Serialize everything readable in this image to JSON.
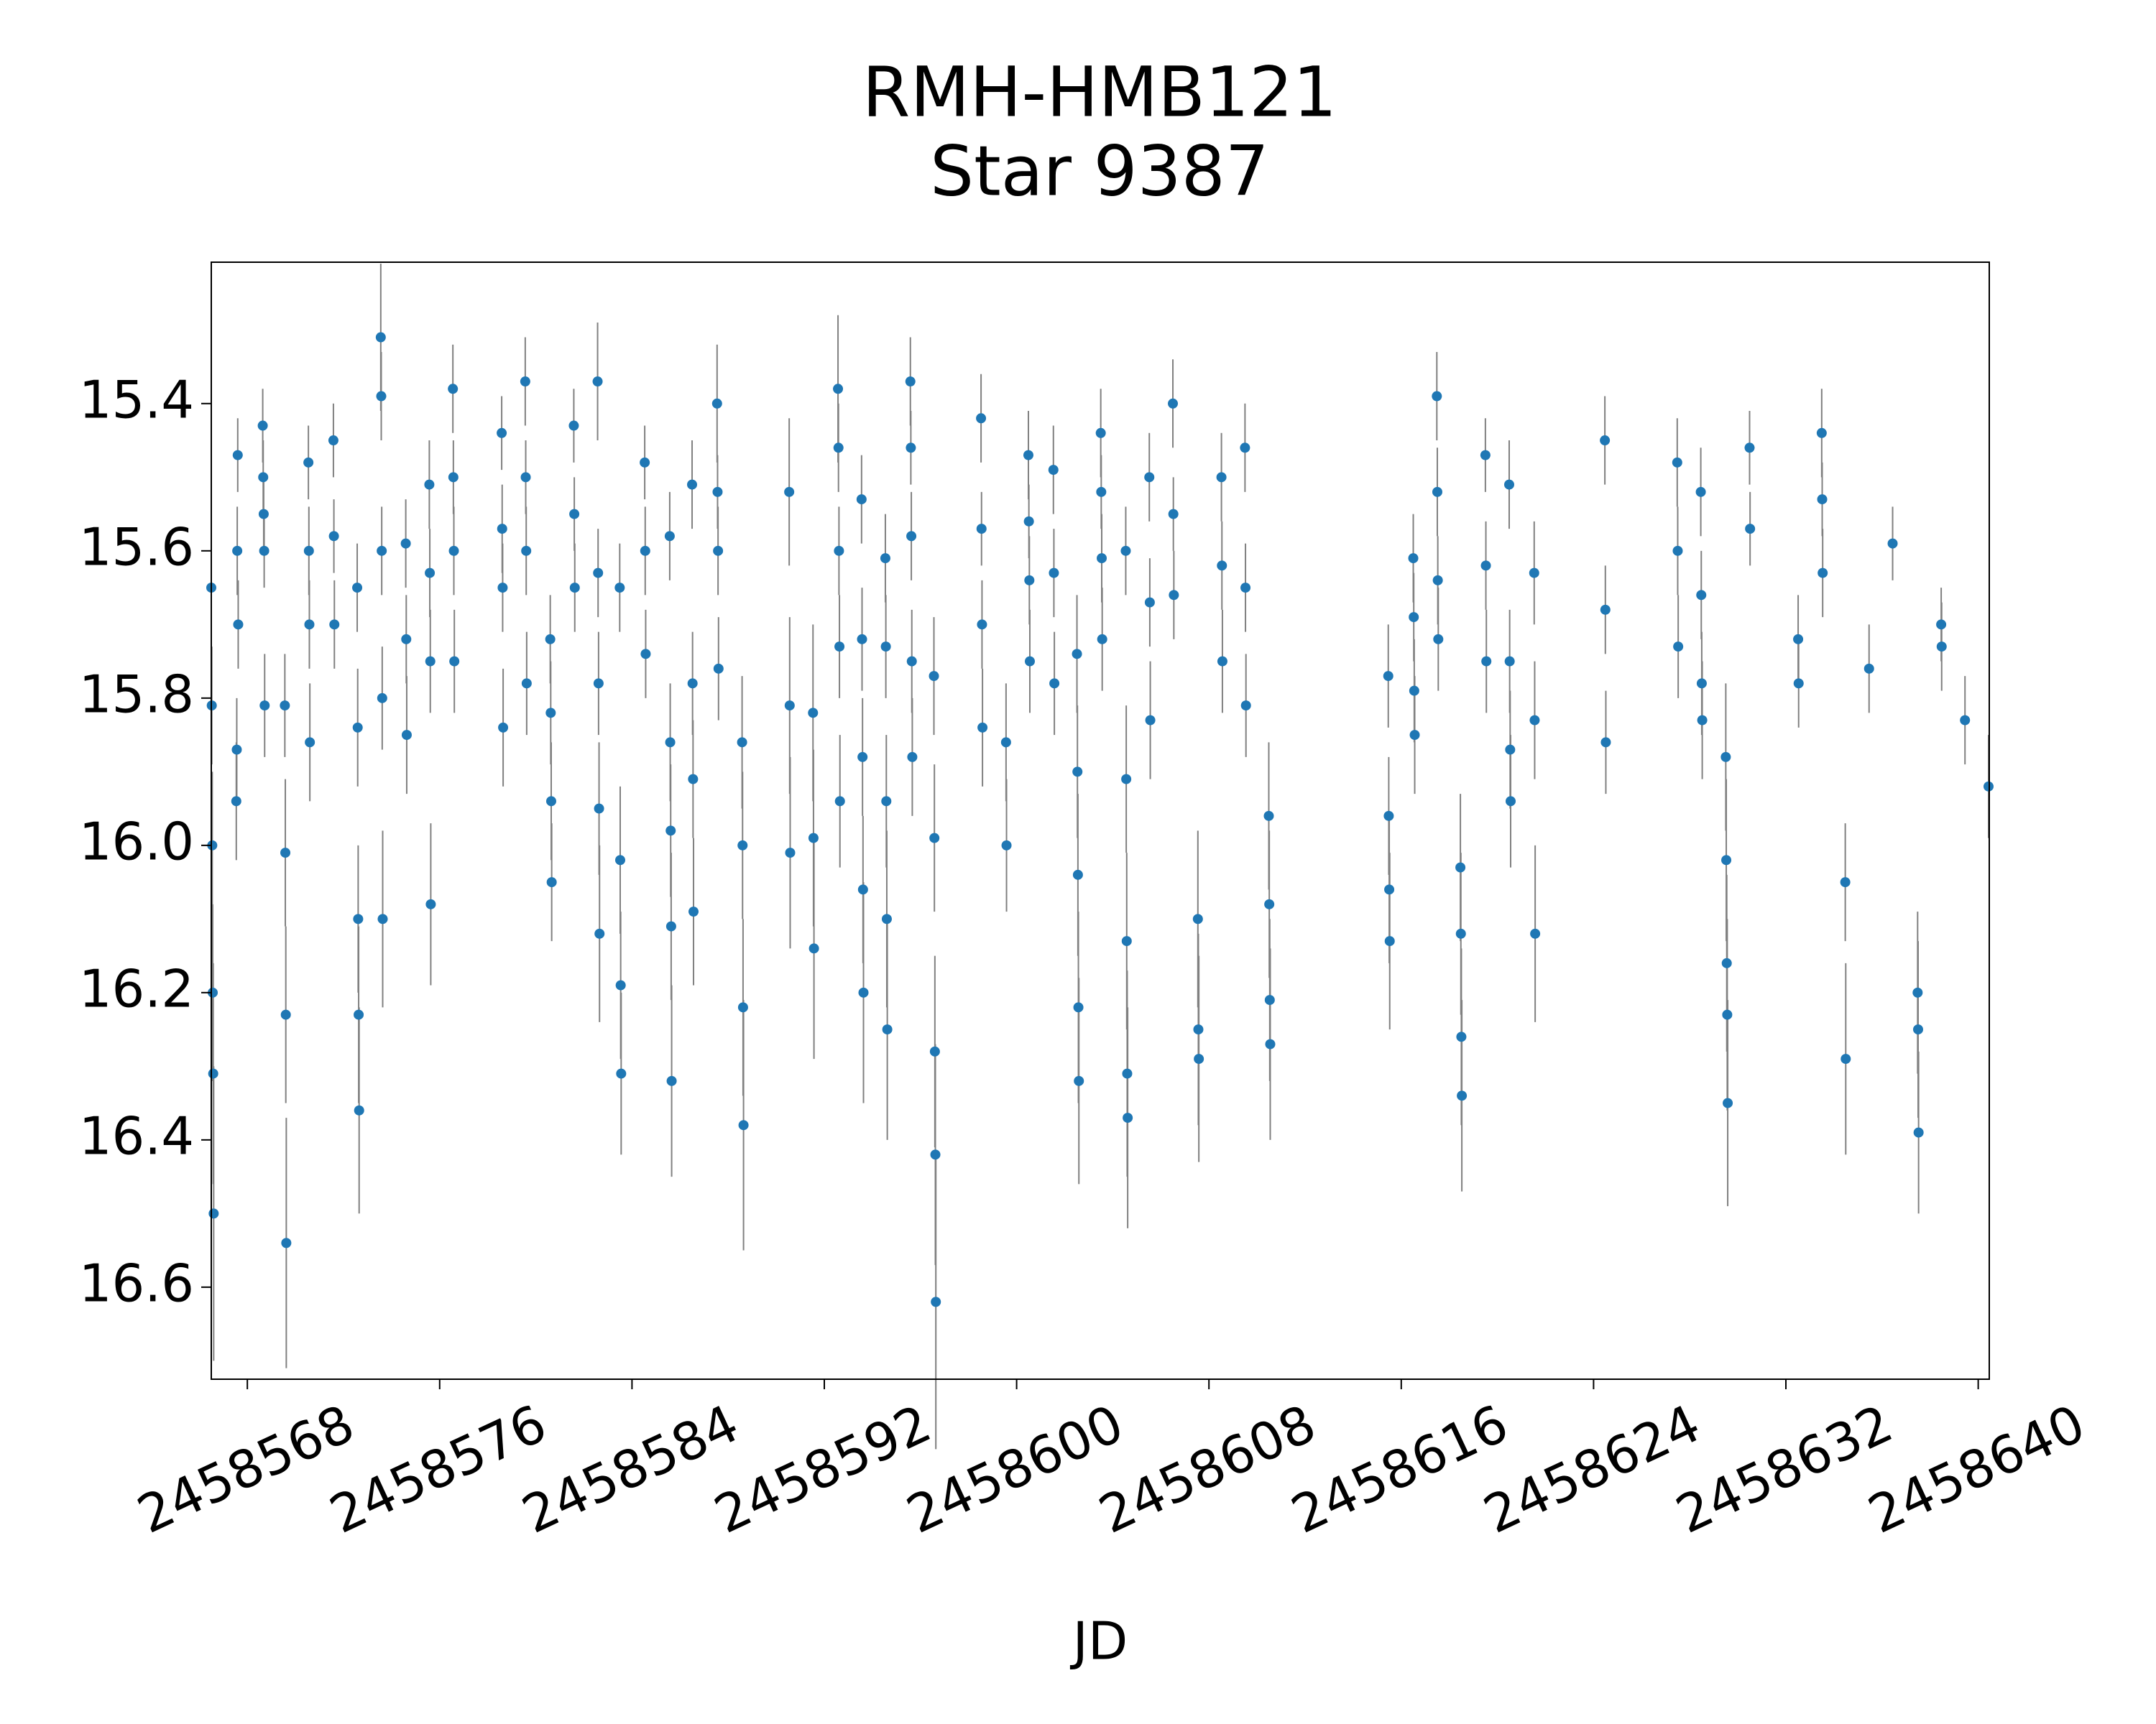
{
  "chart_data": {
    "type": "errorbar",
    "title": "RMH-HMB121",
    "subtitle": "Star 9387",
    "x_label": "JD",
    "xlim": [
      2458566.5,
      2458640.46
    ],
    "ylim": [
      16.725,
      15.208
    ],
    "xticks": [
      2458568,
      2458576,
      2458584,
      2458592,
      2458600,
      2458608,
      2458616,
      2458624,
      2458632,
      2458640
    ],
    "yticks": [
      15.4,
      15.6,
      15.8,
      {
        "value": 16,
        "label": "16.0"
      },
      16.2,
      16.4,
      16.6
    ],
    "color": "#1f77b4",
    "error_color": "#808080",
    "x": [
      2458566.5,
      2458566.52,
      2458566.54,
      2458566.56,
      2458566.58,
      2458566.6,
      2458567.54,
      2458567.56,
      2458567.58,
      2458567.6,
      2458567.62,
      2458568.64,
      2458568.66,
      2458568.68,
      2458568.7,
      2458568.72,
      2458569.56,
      2458569.58,
      2458569.6,
      2458569.62,
      2458570.54,
      2458570.56,
      2458570.58,
      2458570.6,
      2458571.58,
      2458571.6,
      2458571.62,
      2458572.57,
      2458572.59,
      2458572.61,
      2458572.63,
      2458572.65,
      2458573.55,
      2458573.57,
      2458573.59,
      2458573.61,
      2458573.63,
      2458574.59,
      2458574.61,
      2458574.63,
      2458575.57,
      2458575.59,
      2458575.61,
      2458575.63,
      2458576.55,
      2458576.57,
      2458576.59,
      2458576.61,
      2458578.58,
      2458578.6,
      2458578.62,
      2458578.64,
      2458579.56,
      2458579.58,
      2458579.6,
      2458579.62,
      2458580.6,
      2458580.62,
      2458580.64,
      2458580.66,
      2458581.58,
      2458581.6,
      2458581.62,
      2458582.57,
      2458582.59,
      2458582.61,
      2458582.63,
      2458582.65,
      2458583.49,
      2458583.51,
      2458583.53,
      2458583.55,
      2458584.53,
      2458584.55,
      2458584.57,
      2458585.57,
      2458585.59,
      2458585.61,
      2458585.63,
      2458585.65,
      2458586.5,
      2458586.52,
      2458586.54,
      2458586.56,
      2458587.54,
      2458587.56,
      2458587.58,
      2458587.6,
      2458588.58,
      2458588.6,
      2458588.62,
      2458588.64,
      2458590.54,
      2458590.56,
      2458590.58,
      2458591.53,
      2458591.55,
      2458591.57,
      2458592.57,
      2458592.59,
      2458592.61,
      2458592.63,
      2458592.65,
      2458593.55,
      2458593.57,
      2458593.59,
      2458593.61,
      2458593.63,
      2458594.54,
      2458594.56,
      2458594.58,
      2458594.6,
      2458594.62,
      2458595.58,
      2458595.6,
      2458595.62,
      2458595.64,
      2458595.66,
      2458596.56,
      2458596.58,
      2458596.6,
      2458596.62,
      2458596.64,
      2458598.52,
      2458598.54,
      2458598.56,
      2458598.58,
      2458599.56,
      2458599.58,
      2458600.49,
      2458600.51,
      2458600.53,
      2458600.55,
      2458601.53,
      2458601.55,
      2458601.57,
      2458602.51,
      2458602.53,
      2458602.55,
      2458602.57,
      2458602.59,
      2458603.5,
      2458603.52,
      2458603.54,
      2458603.56,
      2458604.54,
      2458604.56,
      2458604.58,
      2458604.6,
      2458604.62,
      2458605.52,
      2458605.54,
      2458605.56,
      2458606.5,
      2458606.52,
      2458606.54,
      2458607.54,
      2458607.56,
      2458607.58,
      2458608.52,
      2458608.54,
      2458608.56,
      2458609.5,
      2458609.52,
      2458609.54,
      2458610.49,
      2458610.51,
      2458610.53,
      2458610.55,
      2458615.46,
      2458615.48,
      2458615.5,
      2458615.52,
      2458616.5,
      2458616.52,
      2458616.54,
      2458616.56,
      2458617.48,
      2458617.5,
      2458617.52,
      2458617.54,
      2458618.46,
      2458618.48,
      2458618.5,
      2458618.52,
      2458619.5,
      2458619.52,
      2458619.54,
      2458620.49,
      2458620.51,
      2458620.53,
      2458620.55,
      2458621.53,
      2458621.55,
      2458621.57,
      2458624.47,
      2458624.49,
      2458624.51,
      2458627.48,
      2458627.5,
      2458627.52,
      2458628.46,
      2458628.48,
      2458628.5,
      2458628.52,
      2458629.5,
      2458629.52,
      2458629.54,
      2458629.56,
      2458629.58,
      2458630.49,
      2458630.51,
      2458632.51,
      2458632.53,
      2458633.49,
      2458633.51,
      2458633.53,
      2458634.47,
      2458634.49,
      2458635.46,
      2458636.44,
      2458637.48,
      2458637.5,
      2458637.52,
      2458638.46,
      2458638.48,
      2458639.45,
      2458640.43
    ],
    "values": [
      15.65,
      15.81,
      16.0,
      16.2,
      16.31,
      16.5,
      15.94,
      15.87,
      15.6,
      15.47,
      15.7,
      15.43,
      15.5,
      15.55,
      15.6,
      15.81,
      15.81,
      16.01,
      16.23,
      16.54,
      15.48,
      15.6,
      15.7,
      15.86,
      15.45,
      15.58,
      15.7,
      15.65,
      15.84,
      16.1,
      16.23,
      16.36,
      15.31,
      15.39,
      15.6,
      15.8,
      16.1,
      15.59,
      15.72,
      15.85,
      15.51,
      15.63,
      15.75,
      16.08,
      15.38,
      15.5,
      15.6,
      15.75,
      15.44,
      15.57,
      15.65,
      15.84,
      15.37,
      15.5,
      15.6,
      15.78,
      15.72,
      15.82,
      15.94,
      16.05,
      15.43,
      15.55,
      15.65,
      15.37,
      15.63,
      15.78,
      15.95,
      16.12,
      15.65,
      16.02,
      16.19,
      16.31,
      15.48,
      15.6,
      15.74,
      15.58,
      15.86,
      15.98,
      16.11,
      16.32,
      15.51,
      15.78,
      15.91,
      16.09,
      15.4,
      15.52,
      15.6,
      15.76,
      15.86,
      16.0,
      16.22,
      16.38,
      15.52,
      15.81,
      16.01,
      15.82,
      15.99,
      16.14,
      15.38,
      15.46,
      15.6,
      15.73,
      15.94,
      15.53,
      15.72,
      15.88,
      16.06,
      16.2,
      15.61,
      15.73,
      15.94,
      16.1,
      16.25,
      15.37,
      15.46,
      15.58,
      15.75,
      15.88,
      15.77,
      15.99,
      16.28,
      16.42,
      16.62,
      15.42,
      15.57,
      15.7,
      15.84,
      15.86,
      16.0,
      15.47,
      15.56,
      15.64,
      15.75,
      15.49,
      15.63,
      15.78,
      15.74,
      15.9,
      16.04,
      16.22,
      16.32,
      15.44,
      15.52,
      15.61,
      15.72,
      15.6,
      15.91,
      16.13,
      16.31,
      16.37,
      15.5,
      15.67,
      15.83,
      15.4,
      15.55,
      15.66,
      16.1,
      16.25,
      16.29,
      15.5,
      15.62,
      15.75,
      15.46,
      15.65,
      15.81,
      15.96,
      16.08,
      16.21,
      16.27,
      15.77,
      15.96,
      16.06,
      16.13,
      15.61,
      15.69,
      15.79,
      15.85,
      15.39,
      15.52,
      15.64,
      15.72,
      16.03,
      16.12,
      16.26,
      16.34,
      15.47,
      15.62,
      15.75,
      15.51,
      15.75,
      15.87,
      15.94,
      15.63,
      15.83,
      16.12,
      15.45,
      15.68,
      15.86,
      15.48,
      15.6,
      15.73,
      15.52,
      15.66,
      15.78,
      15.83,
      15.88,
      16.02,
      16.16,
      16.23,
      16.35,
      15.46,
      15.57,
      15.72,
      15.78,
      15.44,
      15.53,
      15.63,
      16.05,
      16.29,
      15.76,
      15.59,
      16.2,
      16.25,
      16.39,
      15.7,
      15.73,
      15.83,
      15.92
    ],
    "errors": [
      0.06,
      0.08,
      0.1,
      0.12,
      0.15,
      0.2,
      0.08,
      0.07,
      0.06,
      0.05,
      0.06,
      0.05,
      0.05,
      0.05,
      0.05,
      0.07,
      0.07,
      0.1,
      0.12,
      0.17,
      0.05,
      0.06,
      0.06,
      0.08,
      0.05,
      0.05,
      0.06,
      0.06,
      0.08,
      0.1,
      0.12,
      0.14,
      0.1,
      0.06,
      0.06,
      0.07,
      0.12,
      0.06,
      0.06,
      0.08,
      0.06,
      0.06,
      0.07,
      0.11,
      0.06,
      0.05,
      0.06,
      0.07,
      0.05,
      0.06,
      0.06,
      0.08,
      0.06,
      0.05,
      0.06,
      0.07,
      0.06,
      0.07,
      0.08,
      0.08,
      0.05,
      0.05,
      0.06,
      0.08,
      0.06,
      0.07,
      0.09,
      0.12,
      0.06,
      0.1,
      0.1,
      0.11,
      0.05,
      0.06,
      0.06,
      0.06,
      0.08,
      0.09,
      0.1,
      0.13,
      0.06,
      0.07,
      0.08,
      0.1,
      0.08,
      0.05,
      0.06,
      0.07,
      0.09,
      0.1,
      0.12,
      0.17,
      0.1,
      0.12,
      0.13,
      0.12,
      0.12,
      0.15,
      0.1,
      0.06,
      0.06,
      0.07,
      0.09,
      0.06,
      0.07,
      0.08,
      0.1,
      0.15,
      0.06,
      0.07,
      0.09,
      0.12,
      0.15,
      0.06,
      0.05,
      0.06,
      0.07,
      0.08,
      0.08,
      0.1,
      0.13,
      0.15,
      0.2,
      0.06,
      0.05,
      0.06,
      0.08,
      0.08,
      0.09,
      0.06,
      0.05,
      0.06,
      0.07,
      0.06,
      0.06,
      0.07,
      0.08,
      0.09,
      0.11,
      0.13,
      0.14,
      0.06,
      0.05,
      0.06,
      0.07,
      0.06,
      0.1,
      0.12,
      0.14,
      0.15,
      0.06,
      0.06,
      0.08,
      0.06,
      0.05,
      0.06,
      0.12,
      0.13,
      0.14,
      0.06,
      0.06,
      0.07,
      0.06,
      0.06,
      0.07,
      0.1,
      0.1,
      0.11,
      0.13,
      0.07,
      0.08,
      0.1,
      0.12,
      0.06,
      0.06,
      0.07,
      0.08,
      0.06,
      0.06,
      0.06,
      0.07,
      0.1,
      0.11,
      0.12,
      0.13,
      0.05,
      0.06,
      0.07,
      0.06,
      0.07,
      0.08,
      0.09,
      0.07,
      0.08,
      0.12,
      0.06,
      0.06,
      0.07,
      0.06,
      0.06,
      0.07,
      0.06,
      0.06,
      0.07,
      0.08,
      0.1,
      0.11,
      0.12,
      0.13,
      0.14,
      0.05,
      0.05,
      0.06,
      0.06,
      0.06,
      0.05,
      0.06,
      0.08,
      0.13,
      0.06,
      0.05,
      0.11,
      0.12,
      0.11,
      0.05,
      0.06,
      0.06,
      0.07
    ]
  }
}
